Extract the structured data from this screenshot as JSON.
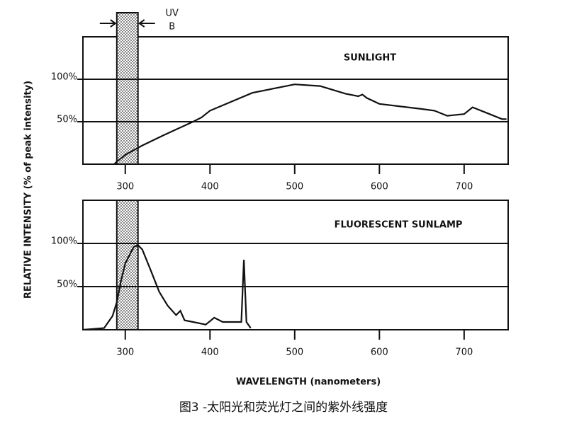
{
  "chart_data": [
    {
      "type": "line",
      "title": "SUNLIGHT",
      "color": "#111111",
      "x": [
        287,
        290,
        300,
        320,
        345,
        380,
        390,
        395,
        400,
        450,
        500,
        530,
        560,
        575,
        580,
        585,
        600,
        650,
        665,
        680,
        700,
        710,
        730,
        745,
        750
      ],
      "values": [
        0,
        3,
        11,
        22,
        34,
        50,
        55,
        59,
        63,
        84,
        94,
        92,
        83,
        80,
        82,
        78,
        71,
        65,
        63,
        57,
        59,
        67,
        59,
        53,
        53
      ],
      "xlim": [
        250,
        752
      ],
      "xticks": [
        300,
        400,
        500,
        600,
        700
      ],
      "ylim": [
        0,
        150
      ],
      "yticks": [
        {
          "value": 50,
          "label": "50%"
        },
        {
          "value": 100,
          "label": "100%"
        }
      ],
      "grid": true
    },
    {
      "type": "line",
      "title": "FLUORESCENT SUNLAMP",
      "color": "#111111",
      "x": [
        250,
        275,
        285,
        290,
        295,
        300,
        310,
        315,
        320,
        330,
        340,
        350,
        360,
        365,
        370,
        380,
        395,
        405,
        415,
        430,
        437,
        440,
        443,
        448
      ],
      "values": [
        0,
        2,
        16,
        32,
        57,
        77,
        96,
        98,
        93,
        69,
        44,
        28,
        17,
        22,
        11,
        9,
        6,
        14,
        9,
        9,
        9,
        81,
        9,
        2
      ],
      "xlim": [
        250,
        752
      ],
      "xticks": [
        300,
        400,
        500,
        600,
        700
      ],
      "ylim": [
        0,
        150
      ],
      "yticks": [
        {
          "value": 50,
          "label": "50%"
        },
        {
          "value": 100,
          "label": "100%"
        }
      ],
      "grid": true
    }
  ],
  "uv_band": {
    "label": [
      "UV",
      "B"
    ],
    "range": [
      290,
      315
    ]
  },
  "y_label": "RELATIVE INTENSITY (% of peak intensity)",
  "x_label": "WAVELENGTH (nanometers)",
  "caption": "图3 -太阳光和荧光灯之间的紫外线强度"
}
